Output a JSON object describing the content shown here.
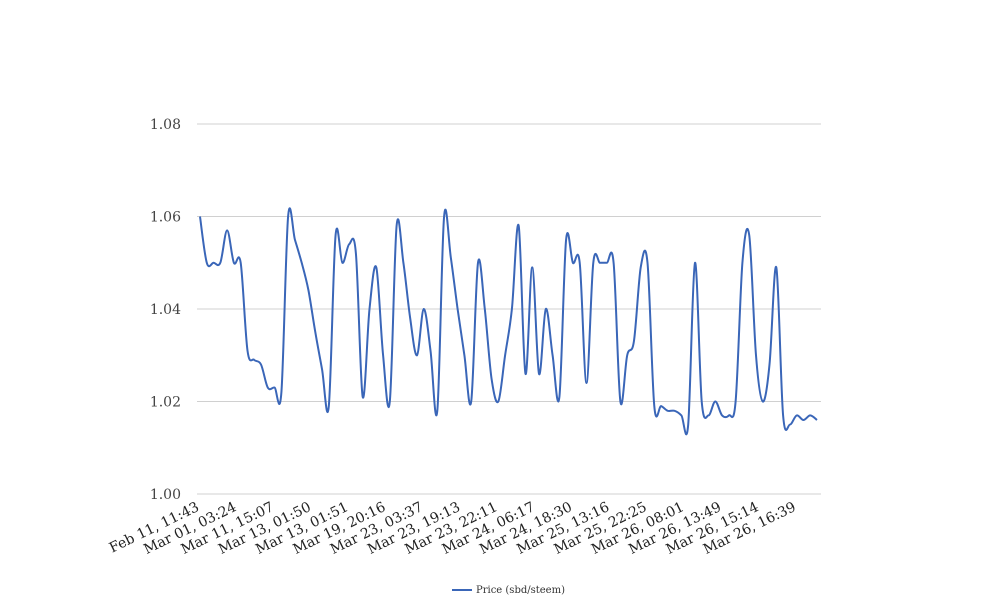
{
  "chart_data": {
    "type": "line",
    "title": "",
    "xlabel": "",
    "ylabel": "",
    "ylim": [
      1.0,
      1.08
    ],
    "yticks": [
      "1.00",
      "1.02",
      "1.04",
      "1.06",
      "1.08"
    ],
    "grid": true,
    "legend_position": "bottom",
    "color": "#3a66b8",
    "xtick_labels": [
      "Feb 11, 11:43",
      "Mar 01, 03:24",
      "Mar 11, 15:07",
      "Mar 13, 01:50",
      "Mar 13, 01:51",
      "Mar 19, 20:16",
      "Mar 23, 03:37",
      "Mar 23, 19:13",
      "Mar 23, 22:11",
      "Mar 24, 06:17",
      "Mar 24, 18:30",
      "Mar 25, 13:16",
      "Mar 25, 22:25",
      "Mar 26, 08:01",
      "Mar 26, 13:49",
      "Mar 26, 15:14",
      "Mar 26, 16:39"
    ],
    "series": [
      {
        "name": "Price (sbd/steem)",
        "values": [
          1.06,
          1.05,
          1.05,
          1.05,
          1.057,
          1.05,
          1.05,
          1.031,
          1.029,
          1.028,
          1.023,
          1.023,
          1.022,
          1.06,
          1.055,
          1.05,
          1.044,
          1.035,
          1.027,
          1.019,
          1.056,
          1.05,
          1.054,
          1.052,
          1.021,
          1.04,
          1.049,
          1.03,
          1.02,
          1.058,
          1.05,
          1.038,
          1.03,
          1.04,
          1.031,
          1.018,
          1.06,
          1.051,
          1.04,
          1.03,
          1.02,
          1.05,
          1.04,
          1.025,
          1.02,
          1.03,
          1.04,
          1.058,
          1.026,
          1.049,
          1.026,
          1.04,
          1.03,
          1.021,
          1.055,
          1.05,
          1.05,
          1.024,
          1.05,
          1.05,
          1.05,
          1.05,
          1.02,
          1.03,
          1.033,
          1.049,
          1.05,
          1.019,
          1.019,
          1.018,
          1.018,
          1.017,
          1.015,
          1.05,
          1.02,
          1.017,
          1.02,
          1.017,
          1.017,
          1.02,
          1.05,
          1.056,
          1.03,
          1.02,
          1.028,
          1.049,
          1.017,
          1.015,
          1.017,
          1.016,
          1.017,
          1.016
        ]
      }
    ]
  }
}
